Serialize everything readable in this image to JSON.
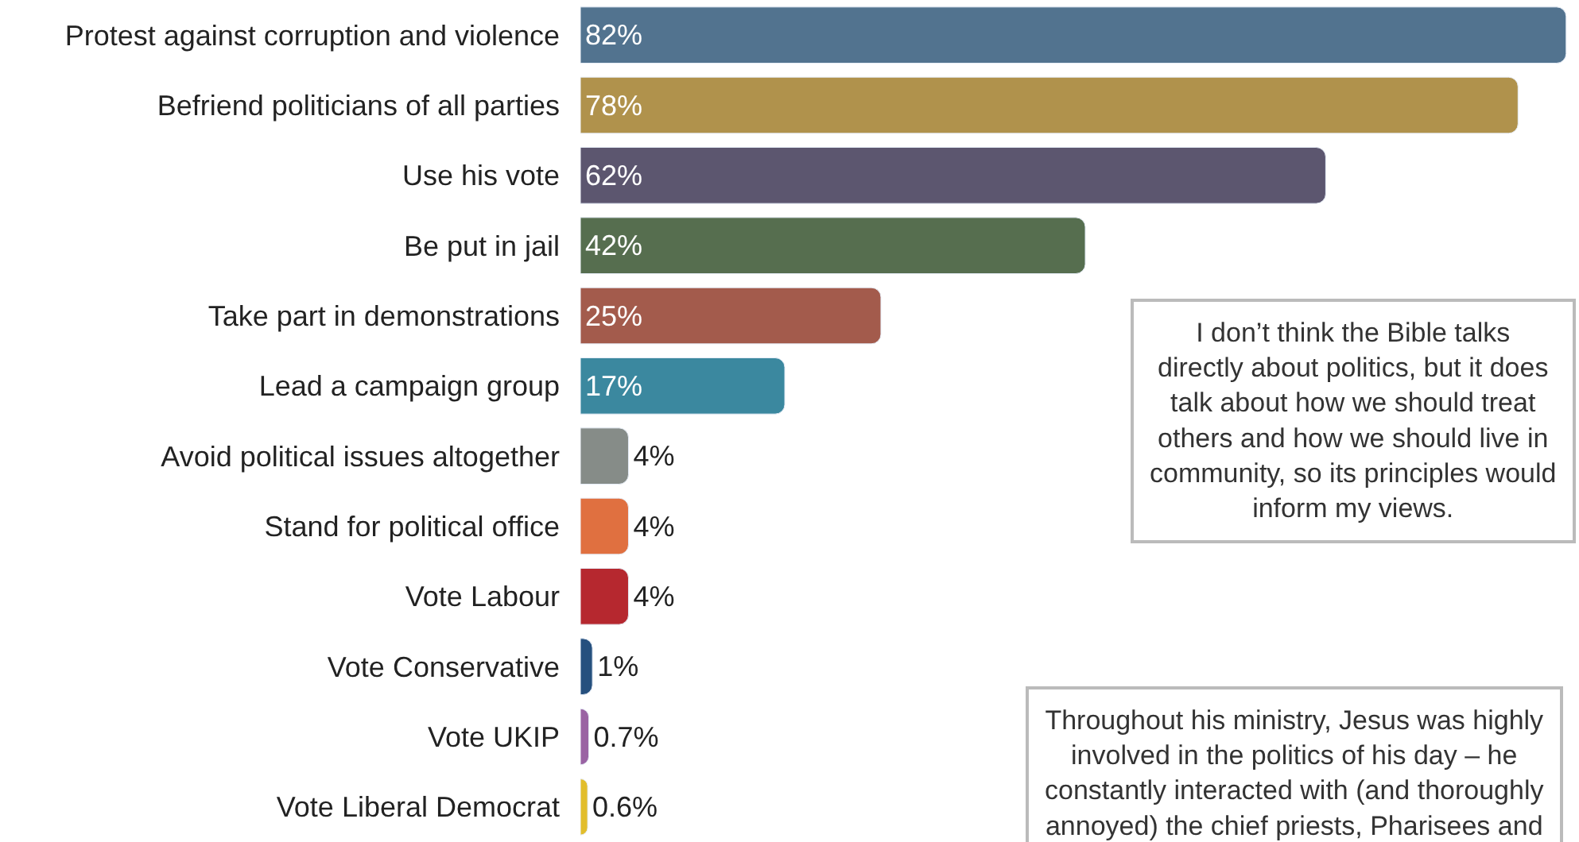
{
  "chart_data": {
    "type": "bar",
    "orientation": "horizontal",
    "categories": [
      "Protest against corruption and violence",
      "Befriend politicians of all parties",
      "Use his vote",
      "Be put in jail",
      "Take part in demonstrations",
      "Lead a campaign group",
      "Avoid political issues altogether",
      "Stand for political office",
      "Vote Labour",
      "Vote Conservative",
      "Vote UKIP",
      "Vote Liberal Democrat"
    ],
    "values": [
      82,
      78,
      62,
      42,
      25,
      17,
      4,
      4,
      4,
      1,
      0.7,
      0.6
    ],
    "colors": [
      "#52738f",
      "#b0924c",
      "#5c566f",
      "#566e4f",
      "#a35b4c",
      "#3b889f",
      "#868c88",
      "#e07040",
      "#b6282f",
      "#26507e",
      "#9a63a3",
      "#e2be2c"
    ],
    "value_labels": [
      "82%",
      "78%",
      "62%",
      "42%",
      "25%",
      "17%",
      "4%",
      "4%",
      "4%",
      "1%",
      "0.7%",
      "0.6%"
    ],
    "annotations": [
      "I don’t think the Bible talks directly about politics, but it does talk about how we should treat others and how we should live in community, so its principles would inform my views.",
      "Throughout his ministry, Jesus was highly involved in the politics of his day – he constantly interacted with (and thoroughly annoyed) the chief priests, Pharisees and"
    ]
  }
}
